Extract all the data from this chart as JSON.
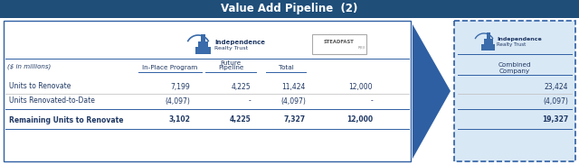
{
  "title": "Value Add Pipeline",
  "title_sup": "(2)",
  "title_bg": "#1F4E79",
  "title_fg": "#FFFFFF",
  "dollar_note": "($ in millions)",
  "col_sub1": "Future",
  "col_h1": "In-Place Program",
  "col_h2": "Pipeline",
  "col_h3": "Total",
  "row_labels": [
    "Units to Renovate",
    "Units Renovated-to-Date",
    "Remaining Units to Renovate"
  ],
  "irt_data": [
    [
      "7,199",
      "4,225",
      "11,424",
      "12,000"
    ],
    [
      "(4,097)",
      "-",
      "(4,097)",
      "-"
    ],
    [
      "3,102",
      "4,225",
      "7,327",
      "12,000"
    ]
  ],
  "row_bold": [
    false,
    false,
    true
  ],
  "combined_header1": "Combined",
  "combined_header2": "Company",
  "combined_data": [
    "23,424",
    "(4,097)",
    "19,327"
  ],
  "combined_bold": [
    false,
    false,
    true
  ],
  "left_box_bg": "#FFFFFF",
  "left_box_border": "#2E5FA3",
  "right_box_bg": "#D9E8F5",
  "right_box_border": "#2E5FA3",
  "arrow_color": "#2E5FA3",
  "text_dark": "#1F3864",
  "text_gray": "#555555",
  "line_color": "#2E5FA3",
  "steadfast_border": "#AAAAAA",
  "bg": "#FFFFFF",
  "irt_logo_color": "#3A6BAA",
  "fig_w": 6.4,
  "fig_h": 1.83,
  "dpi": 100
}
